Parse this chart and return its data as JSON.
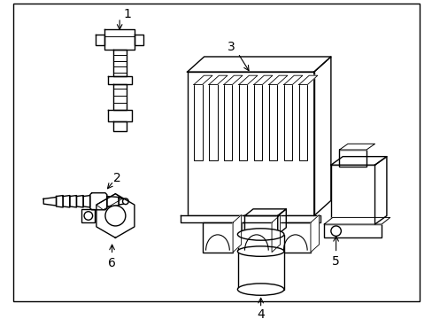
{
  "background_color": "#ffffff",
  "line_color": "#000000",
  "line_width": 1.0,
  "label_fontsize": 9,
  "border_color": "#000000",
  "border_linewidth": 1.0,
  "fig_width": 4.89,
  "fig_height": 3.6
}
